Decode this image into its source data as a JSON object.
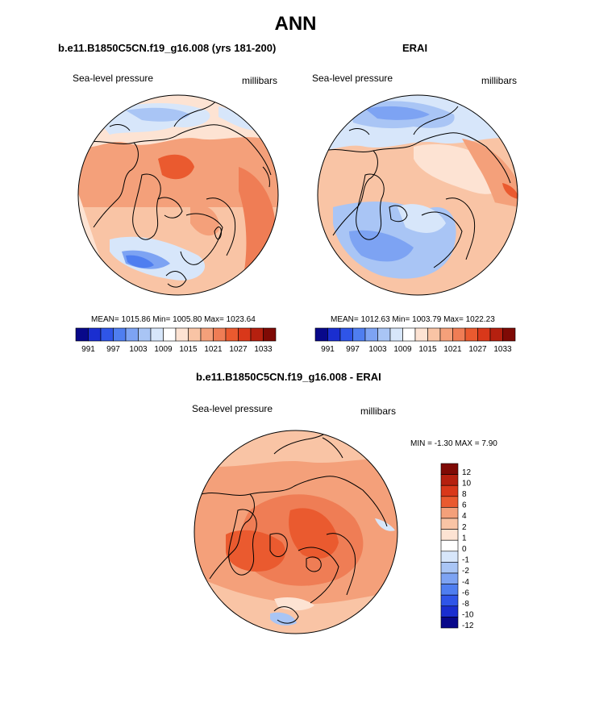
{
  "figure": {
    "title": "ANN"
  },
  "panels": [
    {
      "title": "b.e11.B1850C5CN.f19_g16.008 (yrs 181-200)",
      "variable": "Sea-level pressure",
      "units": "millibars",
      "stats": "MEAN= 1015.86  Min= 1005.80  Max= 1023.64"
    },
    {
      "title": "ERAI",
      "variable": "Sea-level pressure",
      "units": "millibars",
      "stats": "MEAN= 1012.63  Min= 1003.79  Max= 1022.23"
    },
    {
      "title": "b.e11.B1850C5CN.f19_g16.008 - ERAI",
      "variable": "Sea-level pressure",
      "units": "millibars",
      "stats": "MIN =  -1.30 MAX =   7.90"
    }
  ],
  "colorbar_horizontal": {
    "tick_labels": [
      "991",
      "997",
      "1003",
      "1009",
      "1015",
      "1021",
      "1027",
      "1033"
    ],
    "colors": [
      "#08088a",
      "#1a2ed0",
      "#2f55e8",
      "#4f7ef0",
      "#7da3f3",
      "#a9c5f5",
      "#d7e6fa",
      "#ffffff",
      "#fde3d3",
      "#f9c4a5",
      "#f4a07a",
      "#ef7d55",
      "#ea5a2f",
      "#d9381a",
      "#b5200f",
      "#7f0a05"
    ]
  },
  "colorbar_vertical": {
    "tick_labels": [
      "12",
      "10",
      "8",
      "6",
      "4",
      "2",
      "1",
      "0",
      "-1",
      "-2",
      "-4",
      "-6",
      "-8",
      "-10",
      "-12"
    ],
    "colors": [
      "#7f0a05",
      "#b5200f",
      "#d9381a",
      "#ea5a2f",
      "#f4a07a",
      "#f9c4a5",
      "#fde3d3",
      "#ffffff",
      "#d7e6fa",
      "#a9c5f5",
      "#7da3f3",
      "#4f7ef0",
      "#2f55e8",
      "#1a2ed0",
      "#08088a"
    ]
  }
}
